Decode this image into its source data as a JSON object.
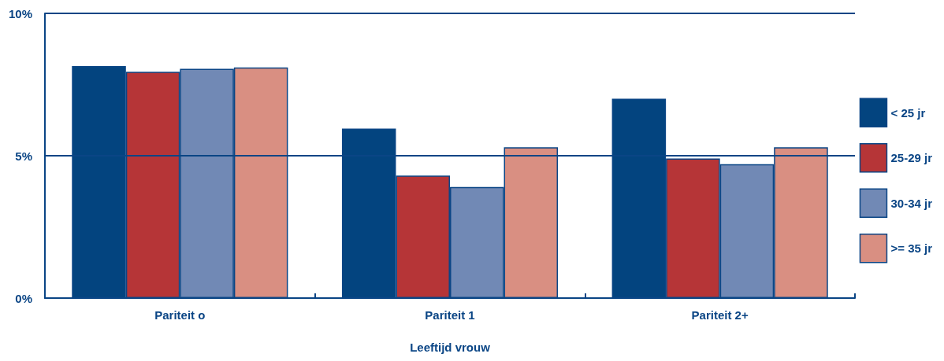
{
  "chart_data": {
    "type": "bar",
    "xlabel": "Leeftijd vrouw",
    "categories": [
      "Pariteit o",
      "Pariteit 1",
      "Pariteit 2+"
    ],
    "series": [
      {
        "name": "< 25 jr",
        "color": "#03447f",
        "values": [
          8.15,
          5.95,
          7.0
        ]
      },
      {
        "name": "25-29 jr",
        "color": "#b63537",
        "values": [
          7.95,
          4.3,
          4.9
        ]
      },
      {
        "name": "30-34 jr",
        "color": "#7189b5",
        "values": [
          8.05,
          3.9,
          4.7
        ]
      },
      {
        "name": ">= 35 jr",
        "color": "#d98f82",
        "values": [
          8.1,
          5.3,
          5.3
        ]
      }
    ],
    "ylim": [
      0,
      10
    ],
    "yticks": [
      {
        "value": 0,
        "label": "0%"
      },
      {
        "value": 5,
        "label": "5%"
      },
      {
        "value": 10,
        "label": "10%"
      }
    ],
    "ref_lines": [
      {
        "axis": "y",
        "value": 5,
        "color": "#0a4585"
      },
      {
        "axis": "y",
        "value": 10,
        "color": "#0a4585"
      }
    ],
    "legend": "right"
  }
}
